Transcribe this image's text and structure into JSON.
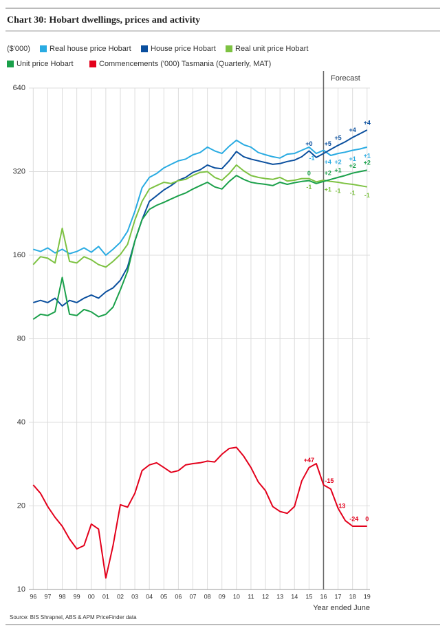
{
  "chart_data": {
    "type": "line",
    "title": "Chart 30: Hobart dwellings, prices and activity",
    "unit_label": "($'000)",
    "x_label": "Year ended June",
    "source": "Source: BIS Shrapnel, ABS & APM PriceFinder data",
    "forecast": {
      "x": 2016,
      "label": "Forecast"
    },
    "log_y": true,
    "grid": true,
    "xlim": [
      1995.7,
      2019.2
    ],
    "xticks": [
      {
        "value": 1996,
        "label": "96"
      },
      {
        "value": 1997,
        "label": "97"
      },
      {
        "value": 1998,
        "label": "98"
      },
      {
        "value": 1999,
        "label": "99"
      },
      {
        "value": 2000,
        "label": "00"
      },
      {
        "value": 2001,
        "label": "01"
      },
      {
        "value": 2002,
        "label": "02"
      },
      {
        "value": 2003,
        "label": "03"
      },
      {
        "value": 2004,
        "label": "04"
      },
      {
        "value": 2005,
        "label": "05"
      },
      {
        "value": 2006,
        "label": "06"
      },
      {
        "value": 2007,
        "label": "07"
      },
      {
        "value": 2008,
        "label": "08"
      },
      {
        "value": 2009,
        "label": "09"
      },
      {
        "value": 2010,
        "label": "10"
      },
      {
        "value": 2011,
        "label": "11"
      },
      {
        "value": 2012,
        "label": "12"
      },
      {
        "value": 2013,
        "label": "13"
      },
      {
        "value": 2014,
        "label": "14"
      },
      {
        "value": 2015,
        "label": "15"
      },
      {
        "value": 2016,
        "label": "16"
      },
      {
        "value": 2017,
        "label": "17"
      },
      {
        "value": 2018,
        "label": "18"
      },
      {
        "value": 2019,
        "label": "19"
      }
    ],
    "ylim": [
      10,
      640
    ],
    "yticks": [
      10,
      20,
      40,
      80,
      160,
      320,
      640
    ],
    "x": [
      1996,
      1996.5,
      1997,
      1997.5,
      1998,
      1998.5,
      1999,
      1999.5,
      2000,
      2000.5,
      2001,
      2001.5,
      2002,
      2002.5,
      2003,
      2003.5,
      2004,
      2004.5,
      2005,
      2005.5,
      2006,
      2006.5,
      2007,
      2007.5,
      2008,
      2008.5,
      2009,
      2009.5,
      2010,
      2010.5,
      2011,
      2011.5,
      2012,
      2012.5,
      2013,
      2013.5,
      2014,
      2014.5,
      2015,
      2015.5,
      2016,
      2016.5,
      2017,
      2017.5,
      2018,
      2018.5,
      2019
    ],
    "series": [
      {
        "name": "Real house price Hobart",
        "color": "#29abe2",
        "values": [
          168,
          165,
          170,
          163,
          168,
          162,
          165,
          170,
          164,
          172,
          160,
          168,
          178,
          195,
          230,
          280,
          305,
          315,
          330,
          340,
          350,
          355,
          368,
          375,
          392,
          380,
          372,
          395,
          415,
          400,
          392,
          375,
          368,
          362,
          358,
          370,
          372,
          382,
          392,
          372,
          382,
          366,
          372,
          376,
          382,
          386,
          392
        ],
        "annotations": [
          {
            "x": 2015.2,
            "label": "-1"
          },
          {
            "x": 2016.3,
            "label": "+4"
          },
          {
            "x": 2017,
            "label": "+2"
          },
          {
            "x": 2018,
            "label": "+1"
          },
          {
            "x": 2019,
            "label": "+1"
          }
        ]
      },
      {
        "name": "House price Hobart",
        "color": "#0a4f9e",
        "values": [
          108,
          110,
          108,
          112,
          105,
          110,
          108,
          112,
          115,
          112,
          118,
          122,
          130,
          145,
          180,
          215,
          250,
          262,
          275,
          285,
          298,
          305,
          318,
          325,
          338,
          330,
          328,
          350,
          378,
          362,
          355,
          350,
          345,
          340,
          342,
          348,
          352,
          362,
          380,
          360,
          372,
          385,
          398,
          410,
          425,
          438,
          452
        ],
        "annotations": [
          {
            "x": 2015,
            "label": "+0"
          },
          {
            "x": 2016.3,
            "label": "+5"
          },
          {
            "x": 2017,
            "label": "+5"
          },
          {
            "x": 2018,
            "label": "+4"
          },
          {
            "x": 2019,
            "label": "+4"
          }
        ]
      },
      {
        "name": "Real unit price Hobart",
        "color": "#7dc242",
        "values": [
          148,
          158,
          156,
          150,
          200,
          152,
          150,
          158,
          154,
          148,
          145,
          152,
          161,
          175,
          214,
          250,
          277,
          285,
          293,
          290,
          297,
          300,
          310,
          318,
          320,
          305,
          298,
          315,
          338,
          322,
          310,
          305,
          302,
          300,
          305,
          296,
          298,
          302,
          302,
          294,
          298,
          295,
          293,
          290,
          288,
          285,
          282
        ],
        "annotations": [
          {
            "x": 2015,
            "label": "-1"
          },
          {
            "x": 2016.3,
            "label": "+1"
          },
          {
            "x": 2017,
            "label": "-1"
          },
          {
            "x": 2018,
            "label": "-1"
          },
          {
            "x": 2019,
            "label": "-1"
          }
        ]
      },
      {
        "name": "Unit price Hobart",
        "color": "#1aa04a",
        "values": [
          94,
          98,
          97,
          100,
          133,
          98,
          97,
          102,
          100,
          96,
          98,
          104,
          120,
          140,
          180,
          215,
          234,
          242,
          248,
          255,
          262,
          268,
          277,
          285,
          293,
          282,
          277,
          295,
          310,
          300,
          293,
          290,
          288,
          285,
          293,
          288,
          292,
          295,
          297,
          290,
          295,
          300,
          305,
          310,
          316,
          320,
          324
        ],
        "annotations": [
          {
            "x": 2015,
            "label": "0"
          },
          {
            "x": 2016.3,
            "label": "+2"
          },
          {
            "x": 2017,
            "label": "+1"
          },
          {
            "x": 2018,
            "label": "+2"
          },
          {
            "x": 2019,
            "label": "+2"
          }
        ]
      },
      {
        "name": "Commencements ('000) Tasmania (Quarterly, MAT)",
        "color": "#e3001b",
        "values": [
          23.8,
          22.2,
          19.9,
          18.2,
          16.9,
          15.2,
          14.0,
          14.4,
          17.2,
          16.5,
          11.0,
          14.4,
          20.2,
          19.8,
          22.2,
          26.8,
          28.1,
          28.6,
          27.5,
          26.4,
          26.8,
          28.1,
          28.4,
          28.6,
          29.0,
          28.8,
          30.7,
          32.2,
          32.5,
          30.2,
          27.5,
          24.4,
          22.7,
          19.9,
          19.1,
          18.8,
          19.9,
          24.6,
          27.5,
          28.4,
          23.8,
          23.0,
          19.6,
          17.7,
          16.9,
          16.9,
          16.9
        ],
        "annotations": [
          {
            "x": 2015,
            "label": "+47"
          },
          {
            "x": 2016.4,
            "label": "-15"
          },
          {
            "x": 2017.2,
            "label": "-13"
          },
          {
            "x": 2018.1,
            "label": "-24"
          },
          {
            "x": 2019,
            "label": "0"
          }
        ]
      }
    ]
  }
}
